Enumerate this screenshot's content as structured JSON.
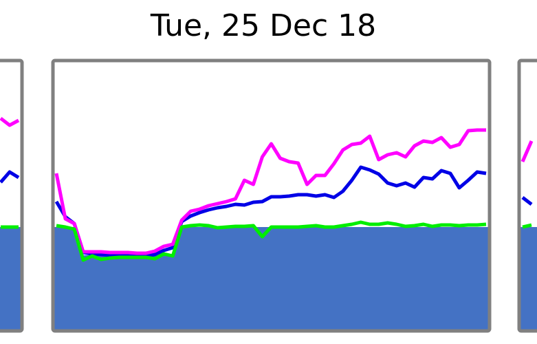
{
  "chart_data": [
    {
      "type": "line",
      "xlim": [
        0,
        48
      ],
      "ylim": [
        0,
        393
      ],
      "x": [
        46,
        47,
        48
      ],
      "series": [
        {
          "color": "#4472c4",
          "style": "area",
          "values": [
            151,
            151,
            151
          ]
        },
        {
          "color": "#0000e6",
          "values": [
            216,
            231,
            223
          ]
        },
        {
          "color": "#ff00ff",
          "values": [
            309,
            299,
            306
          ]
        },
        {
          "color": "#00ee00",
          "values": [
            151,
            151,
            151
          ]
        }
      ]
    },
    {
      "type": "line",
      "title": "Tue, 25 Dec 18",
      "xlim": [
        0,
        48
      ],
      "ylim": [
        0,
        393
      ],
      "x": [
        0,
        1,
        2,
        3,
        4,
        5,
        6,
        7,
        8,
        9,
        10,
        11,
        12,
        13,
        14,
        15,
        16,
        17,
        18,
        19,
        20,
        21,
        22,
        23,
        24,
        25,
        26,
        27,
        28,
        29,
        30,
        31,
        32,
        33,
        34,
        35,
        36,
        37,
        38,
        39,
        40,
        41,
        42,
        43,
        44,
        45,
        46,
        47,
        48
      ],
      "series": [
        {
          "color": "#4472c4",
          "style": "area",
          "values": [
            151,
            151,
            151,
            110,
            110,
            110,
            110,
            110,
            110,
            110,
            110,
            110,
            110,
            110,
            151,
            151,
            151,
            151,
            151,
            151,
            151,
            151,
            151,
            151,
            151,
            151,
            151,
            151,
            151,
            151,
            151,
            151,
            151,
            151,
            151,
            151,
            151,
            151,
            151,
            151,
            151,
            151,
            151,
            151,
            151,
            151,
            151,
            151,
            151
          ]
        },
        {
          "color": "#0000e6",
          "values": [
            188,
            166,
            156,
            114,
            112,
            111,
            110,
            110,
            110,
            110,
            109,
            111,
            117,
            121,
            159,
            167,
            172,
            176,
            179,
            181,
            184,
            183,
            187,
            188,
            195,
            195,
            196,
            198,
            198,
            196,
            198,
            194,
            203,
            219,
            238,
            234,
            228,
            215,
            211,
            215,
            209,
            223,
            221,
            233,
            229,
            208,
            219,
            231,
            229
          ]
        },
        {
          "color": "#ff00ff",
          "values": [
            229,
            163,
            156,
            115,
            115,
            115,
            114,
            114,
            114,
            113,
            113,
            116,
            123,
            126,
            161,
            174,
            177,
            182,
            185,
            188,
            192,
            219,
            213,
            253,
            272,
            251,
            246,
            244,
            213,
            226,
            226,
            243,
            263,
            271,
            273,
            283,
            249,
            256,
            259,
            253,
            269,
            276,
            274,
            281,
            267,
            271,
            291,
            292,
            292
          ]
        },
        {
          "color": "#00ee00",
          "values": [
            153,
            151,
            148,
            103,
            109,
            104,
            106,
            107,
            107,
            107,
            107,
            105,
            112,
            109,
            151,
            153,
            154,
            153,
            150,
            151,
            152,
            152,
            153,
            137,
            151,
            151,
            151,
            151,
            152,
            153,
            151,
            151,
            153,
            155,
            158,
            155,
            155,
            157,
            155,
            152,
            153,
            155,
            152,
            154,
            154,
            153,
            154,
            154,
            155
          ]
        }
      ]
    },
    {
      "type": "line",
      "xlim": [
        0,
        48
      ],
      "ylim": [
        0,
        393
      ],
      "x": [
        0,
        1
      ],
      "series": [
        {
          "color": "#4472c4",
          "style": "area",
          "values": [
            151,
            151
          ]
        },
        {
          "color": "#0000e6",
          "values": [
            194,
            184
          ]
        },
        {
          "color": "#ff00ff",
          "values": [
            246,
            276
          ]
        },
        {
          "color": "#00ee00",
          "values": [
            151,
            154
          ]
        }
      ]
    }
  ]
}
